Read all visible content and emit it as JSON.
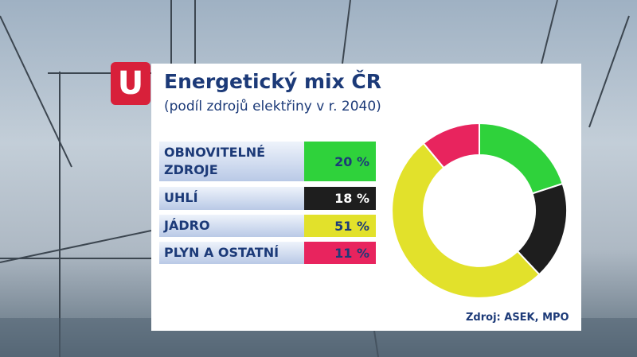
{
  "logo": "U",
  "chart_data": {
    "type": "pie",
    "title": "Energetický mix ČR",
    "subtitle": "(podíl zdrojů elektřiny v r. 2040)",
    "source": "Zdroj: ASEK, MPO",
    "categories": [
      "OBNOVITELNÉ ZDROJE",
      "UHLÍ",
      "JÁDRO",
      "PLYN A OSTATNÍ"
    ],
    "values": [
      20,
      18,
      51,
      11
    ],
    "value_labels": [
      "20 %",
      "18 %",
      "51 %",
      "11 %"
    ],
    "colors": [
      "#2fd23b",
      "#1e1e1e",
      "#e2e12b",
      "#e8245e"
    ]
  }
}
